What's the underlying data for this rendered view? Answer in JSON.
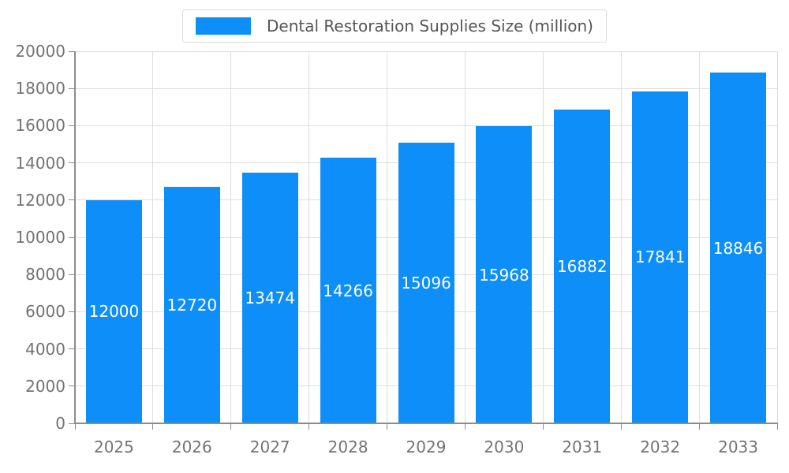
{
  "colors": {
    "bar": "#0d8ef8",
    "bar_label": "#ffffff",
    "axis_text": "#737373",
    "legend_text": "#555555",
    "grid_line": "#dedede",
    "axis_line": "#8c8c8c"
  },
  "legend": {
    "label": "Dental Restoration Supplies Size (million)",
    "swatch_icon": "bar-series-swatch"
  },
  "chart_data": {
    "type": "bar",
    "title": "Dental Restoration Supplies Size (million)",
    "categories": [
      "2025",
      "2026",
      "2027",
      "2028",
      "2029",
      "2030",
      "2031",
      "2032",
      "2033"
    ],
    "values": [
      12000,
      12720,
      13474,
      14266,
      15096,
      15968,
      16882,
      17841,
      18846
    ],
    "bar_value_labels": [
      "12000",
      "12720",
      "13474",
      "14266",
      "15096",
      "15968",
      "16882",
      "17841",
      "18846"
    ],
    "xlabel": "",
    "ylabel": "",
    "ylim": [
      0,
      20000
    ],
    "y_ticks": [
      0,
      2000,
      4000,
      6000,
      8000,
      10000,
      12000,
      14000,
      16000,
      18000,
      20000
    ],
    "grid": true,
    "legend_position": "top"
  }
}
